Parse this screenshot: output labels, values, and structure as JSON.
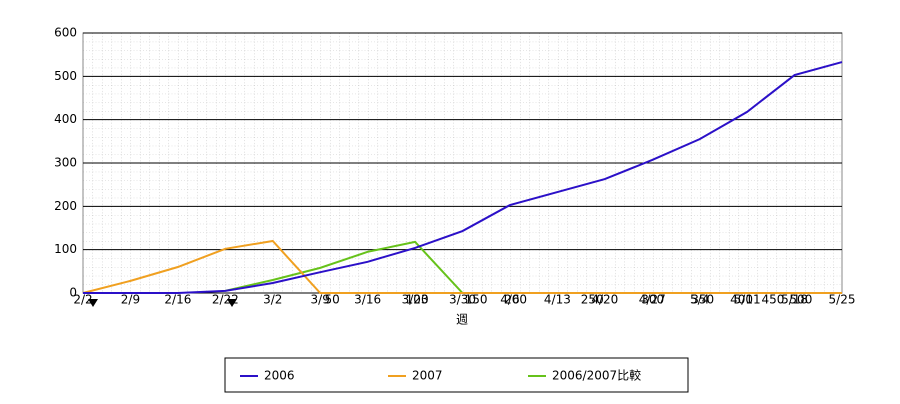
{
  "chart_data": {
    "type": "line",
    "x_label": "週",
    "categories": [
      "2/2",
      "2/9",
      "2/16",
      "2/22",
      "3/2",
      "3/9",
      "3/16",
      "3/23",
      "3/30",
      "4/6",
      "4/13",
      "4/20",
      "4/27",
      "5/4",
      "5/11",
      "5/18",
      "5/25"
    ],
    "series": [
      {
        "name": "2006",
        "color": "#2b10c8",
        "values": [
          0,
          0,
          0,
          5,
          23,
          48,
          72,
          104,
          143,
          203,
          233,
          263,
          307,
          355,
          418,
          503,
          533
        ]
      },
      {
        "name": "2007",
        "color": "#f0a020",
        "values": [
          0,
          28,
          60,
          102,
          120,
          0,
          0,
          0,
          0,
          0,
          0,
          0,
          0,
          0,
          0,
          0,
          0
        ]
      },
      {
        "name": "2006/2007比較",
        "color": "#66c21a",
        "values": [
          null,
          null,
          null,
          5,
          30,
          58,
          95,
          118,
          0,
          0,
          0,
          0,
          0,
          0,
          0,
          0,
          0
        ]
      }
    ],
    "milestones": [
      50,
      100,
      150,
      200,
      250,
      300,
      350,
      400,
      450,
      500
    ],
    "ylim": [
      0,
      600
    ],
    "yticks": [
      0,
      100,
      200,
      300,
      400,
      500,
      600
    ],
    "grid": true
  }
}
